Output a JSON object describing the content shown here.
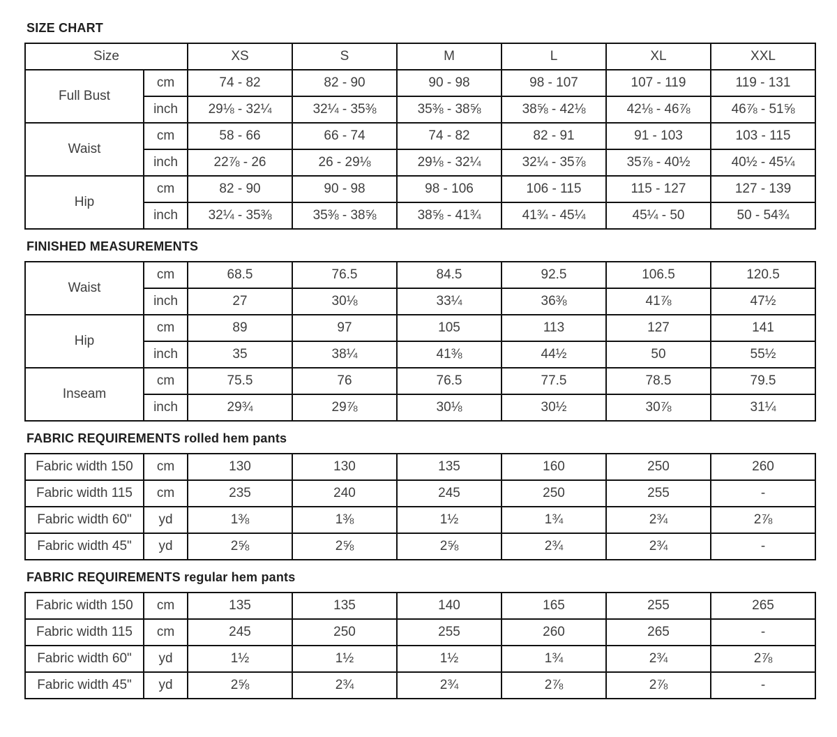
{
  "colors": {
    "background": "#ffffff",
    "border": "#111111",
    "cell_text": "#3e3e3e",
    "title_text": "#1f1f1f"
  },
  "sections": [
    {
      "id": "size-chart",
      "title": "SIZE CHART",
      "title_suffix": "",
      "header": {
        "label": "Size",
        "sizes": [
          "XS",
          "S",
          "M",
          "L",
          "XL",
          "XXL"
        ]
      },
      "groups": [
        {
          "label": "Full Bust",
          "rows": [
            {
              "unit": "cm",
              "values": [
                "74 - 82",
                "82 - 90",
                "90 - 98",
                "98 - 107",
                "107 - 119",
                "119 - 131"
              ]
            },
            {
              "unit": "inch",
              "values": [
                "29⅛ - 32¼",
                "32¼ - 35⅜",
                "35⅜ - 38⅝",
                "38⅝ - 42⅛",
                "42⅛ - 46⅞",
                "46⅞ - 51⅝"
              ]
            }
          ]
        },
        {
          "label": "Waist",
          "rows": [
            {
              "unit": "cm",
              "values": [
                "58 - 66",
                "66 - 74",
                "74 - 82",
                "82 - 91",
                "91 - 103",
                "103 - 115"
              ]
            },
            {
              "unit": "inch",
              "values": [
                "22⅞ - 26",
                "26 - 29⅛",
                "29⅛ - 32¼",
                "32¼ - 35⅞",
                "35⅞ - 40½",
                "40½ - 45¼"
              ]
            }
          ]
        },
        {
          "label": "Hip",
          "rows": [
            {
              "unit": "cm",
              "values": [
                "82 - 90",
                "90 - 98",
                "98 - 106",
                "106 - 115",
                "115 - 127",
                "127 - 139"
              ]
            },
            {
              "unit": "inch",
              "values": [
                "32¼ - 35⅜",
                "35⅜ - 38⅝",
                "38⅝ - 41¾",
                "41¾ - 45¼",
                "45¼ - 50",
                "50 - 54¾"
              ]
            }
          ]
        }
      ]
    },
    {
      "id": "finished-measurements",
      "title": "FINISHED MEASUREMENTS",
      "title_suffix": "",
      "groups": [
        {
          "label": "Waist",
          "rows": [
            {
              "unit": "cm",
              "values": [
                "68.5",
                "76.5",
                "84.5",
                "92.5",
                "106.5",
                "120.5"
              ]
            },
            {
              "unit": "inch",
              "values": [
                "27",
                "30⅛",
                "33¼",
                "36⅜",
                "41⅞",
                "47½"
              ]
            }
          ]
        },
        {
          "label": "Hip",
          "rows": [
            {
              "unit": "cm",
              "values": [
                "89",
                "97",
                "105",
                "113",
                "127",
                "141"
              ]
            },
            {
              "unit": "inch",
              "values": [
                "35",
                "38¼",
                "41⅜",
                "44½",
                "50",
                "55½"
              ]
            }
          ]
        },
        {
          "label": "Inseam",
          "rows": [
            {
              "unit": "cm",
              "values": [
                "75.5",
                "76",
                "76.5",
                "77.5",
                "78.5",
                "79.5"
              ]
            },
            {
              "unit": "inch",
              "values": [
                "29¾",
                "29⅞",
                "30⅛",
                "30½",
                "30⅞",
                "31¼"
              ]
            }
          ]
        }
      ]
    },
    {
      "id": "fabric-rolled-hem",
      "title": "FABRIC REQUIREMENTS",
      "title_suffix": " rolled hem pants",
      "rows": [
        {
          "label": "Fabric width 150",
          "unit": "cm",
          "values": [
            "130",
            "130",
            "135",
            "160",
            "250",
            "260"
          ]
        },
        {
          "label": "Fabric width 115",
          "unit": "cm",
          "values": [
            "235",
            "240",
            "245",
            "250",
            "255",
            "-"
          ]
        },
        {
          "label": "Fabric width 60\"",
          "unit": "yd",
          "values": [
            "1⅜",
            "1⅜",
            "1½",
            "1¾",
            "2¾",
            "2⅞"
          ]
        },
        {
          "label": "Fabric width 45\"",
          "unit": "yd",
          "values": [
            "2⅝",
            "2⅝",
            "2⅝",
            "2¾",
            "2¾",
            "-"
          ]
        }
      ]
    },
    {
      "id": "fabric-regular-hem",
      "title": "FABRIC REQUIREMENTS",
      "title_suffix": " regular hem pants",
      "rows": [
        {
          "label": "Fabric width 150",
          "unit": "cm",
          "values": [
            "135",
            "135",
            "140",
            "165",
            "255",
            "265"
          ]
        },
        {
          "label": "Fabric width 115",
          "unit": "cm",
          "values": [
            "245",
            "250",
            "255",
            "260",
            "265",
            "-"
          ]
        },
        {
          "label": "Fabric width 60\"",
          "unit": "yd",
          "values": [
            "1½",
            "1½",
            "1½",
            "1¾",
            "2¾",
            "2⅞"
          ]
        },
        {
          "label": "Fabric width 45\"",
          "unit": "yd",
          "values": [
            "2⅝",
            "2¾",
            "2¾",
            "2⅞",
            "2⅞",
            "-"
          ]
        }
      ]
    }
  ]
}
